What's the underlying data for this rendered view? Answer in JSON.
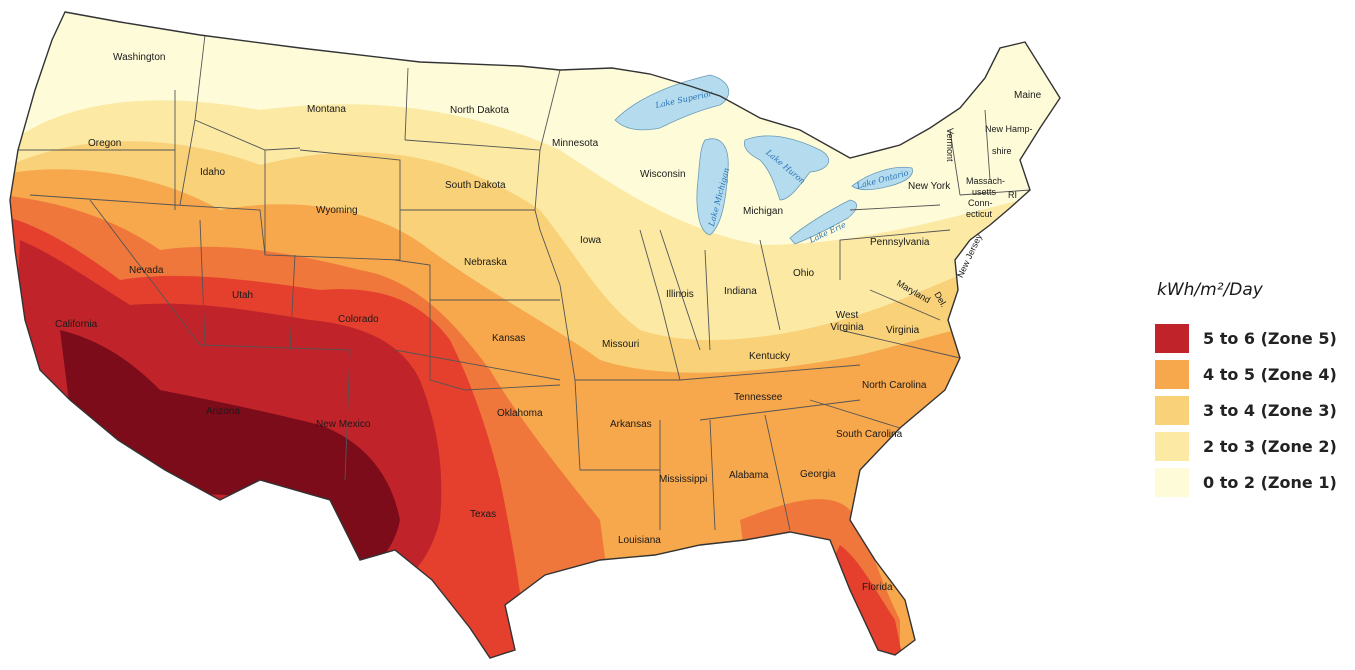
{
  "legend": {
    "title": "kWh/m²/Day",
    "zones": [
      {
        "label": "5 to 6 (Zone 5)",
        "color": "#c0242a"
      },
      {
        "label": "4 to 5 (Zone 4)",
        "color": "#f7a74c"
      },
      {
        "label": "3 to 4 (Zone 3)",
        "color": "#f9d178"
      },
      {
        "label": "2 to 3 (Zone 2)",
        "color": "#fbe9a4"
      },
      {
        "label": "0 to 2 (Zone 1)",
        "color": "#fefbd8"
      }
    ]
  },
  "map_colors": {
    "zone1": "#fefbd8",
    "zone2": "#fbe9a4",
    "zone3": "#f9d178",
    "zone4": "#f7a74c",
    "zone4b": "#f0773b",
    "zone5a": "#e5402e",
    "zone5b": "#c0242a",
    "zone5c": "#7c0c1a",
    "lake": "#b4dcee",
    "border": "#555555"
  },
  "states": [
    "Washington",
    "Oregon",
    "Idaho",
    "Montana",
    "Wyoming",
    "North Dakota",
    "South Dakota",
    "Minnesota",
    "Wisconsin",
    "Michigan",
    "Iowa",
    "Nebraska",
    "California",
    "Nevada",
    "Utah",
    "Colorado",
    "Arizona",
    "New Mexico",
    "Kansas",
    "Oklahoma",
    "Texas",
    "Missouri",
    "Illinois",
    "Indiana",
    "Ohio",
    "Kentucky",
    "West Virginia",
    "Virginia",
    "Tennessee",
    "North Carolina",
    "South Carolina",
    "Georgia",
    "Alabama",
    "Mississippi",
    "Arkansas",
    "Louisiana",
    "Florida",
    "Pennsylvania",
    "New York",
    "Maine",
    "Vermont",
    "New Hamp-",
    "shire",
    "Massach-",
    "usetts",
    "Conn-",
    "ecticut",
    "RI",
    "New Jersey",
    "Maryland",
    "Del."
  ],
  "lakes": [
    "Lake Superior",
    "Lake Michigan",
    "Lake Huron",
    "Lake Erie",
    "Lake Ontario"
  ]
}
